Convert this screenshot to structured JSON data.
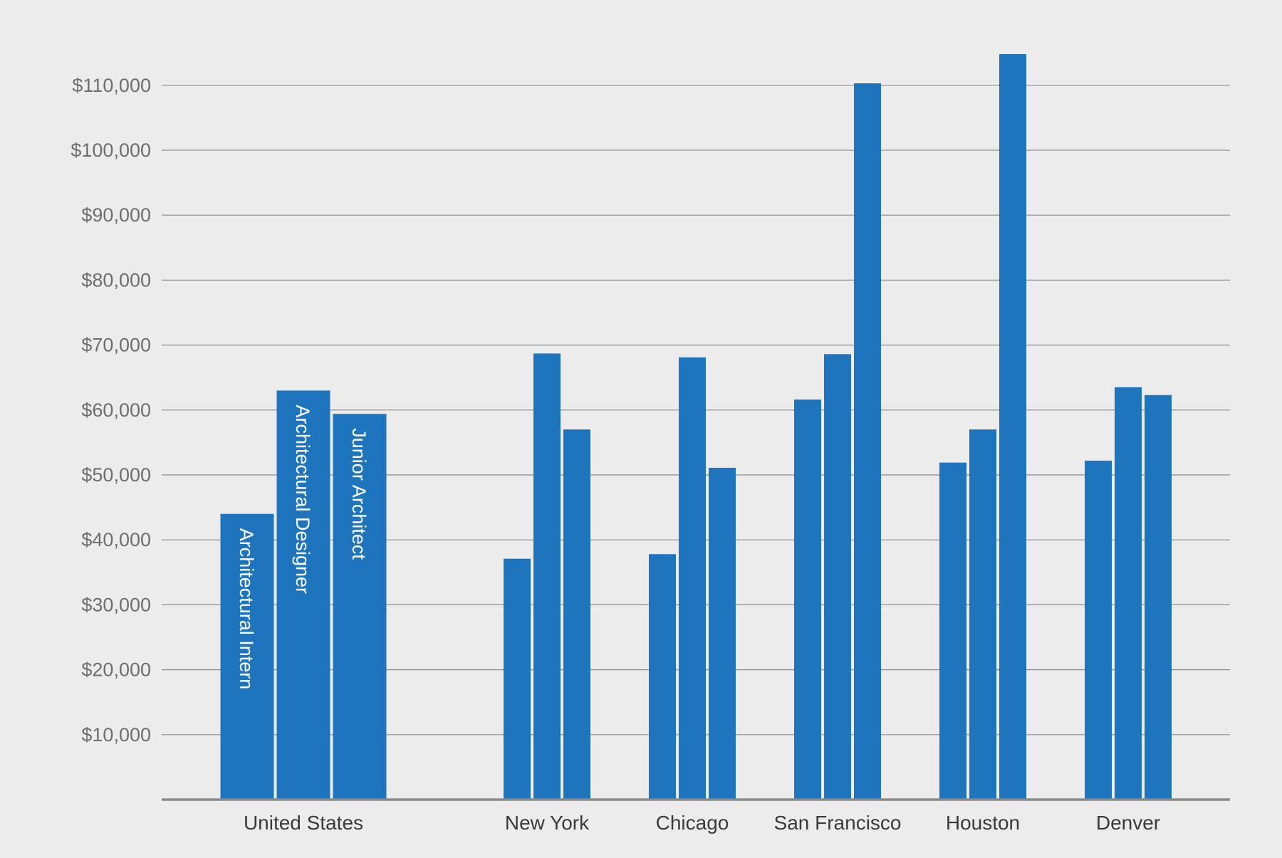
{
  "chart_data": {
    "type": "bar",
    "title": "",
    "xlabel": "",
    "ylabel": "",
    "ylim": [
      0,
      120000
    ],
    "y_ticks": [
      10000,
      20000,
      30000,
      40000,
      50000,
      60000,
      70000,
      80000,
      90000,
      100000,
      110000
    ],
    "y_tick_labels": [
      "$10,000",
      "$20,000",
      "$30,000",
      "$40,000",
      "$50,000",
      "$60,000",
      "$70,000",
      "$80,000",
      "$90,000",
      "$100,000",
      "$110,000"
    ],
    "grid": true,
    "legend": "none (series labeled inside the United States bars)",
    "categories": [
      "United States",
      "New York",
      "Chicago",
      "San Francisco",
      "Houston",
      "Denver"
    ],
    "series": [
      {
        "name": "Architectural Intern",
        "values": [
          44000,
          37100,
          37800,
          61600,
          51900,
          52200
        ]
      },
      {
        "name": "Architectural Designer",
        "values": [
          63000,
          68700,
          68100,
          68600,
          57000,
          63500
        ]
      },
      {
        "name": "Junior Architect",
        "values": [
          59400,
          57000,
          51100,
          110300,
          114800,
          62300
        ]
      }
    ],
    "bar_color": "#1f74be"
  }
}
